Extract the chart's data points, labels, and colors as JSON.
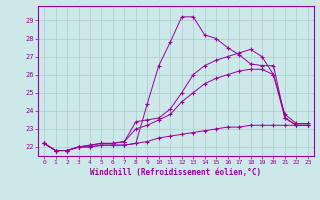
{
  "background_color": "#cce8e8",
  "grid_color": "#aacccc",
  "line_color": "#990099",
  "xlabel": "Windchill (Refroidissement éolien,°C)",
  "xlim": [
    -0.5,
    23.5
  ],
  "ylim": [
    21.5,
    29.8
  ],
  "yticks": [
    22,
    23,
    24,
    25,
    26,
    27,
    28,
    29
  ],
  "xticks": [
    0,
    1,
    2,
    3,
    4,
    5,
    6,
    7,
    8,
    9,
    10,
    11,
    12,
    13,
    14,
    15,
    16,
    17,
    18,
    19,
    20,
    21,
    22,
    23
  ],
  "series": [
    [
      22.2,
      21.8,
      21.8,
      22.0,
      22.0,
      22.1,
      22.1,
      22.1,
      22.2,
      24.4,
      26.5,
      27.8,
      29.2,
      29.2,
      28.2,
      28.0,
      27.5,
      27.1,
      26.6,
      26.5,
      26.5,
      23.6,
      23.2,
      23.2
    ],
    [
      22.2,
      21.8,
      21.8,
      22.0,
      22.1,
      22.2,
      22.2,
      22.3,
      23.4,
      23.5,
      23.6,
      24.1,
      25.0,
      26.0,
      26.5,
      26.8,
      27.0,
      27.2,
      27.4,
      27.0,
      26.0,
      23.8,
      23.3,
      23.3
    ],
    [
      22.2,
      21.8,
      21.8,
      22.0,
      22.1,
      22.2,
      22.2,
      22.3,
      23.0,
      23.2,
      23.5,
      23.8,
      24.5,
      25.0,
      25.5,
      25.8,
      26.0,
      26.2,
      26.3,
      26.3,
      26.0,
      23.6,
      23.2,
      23.2
    ],
    [
      22.2,
      21.8,
      21.8,
      22.0,
      22.0,
      22.1,
      22.1,
      22.1,
      22.2,
      22.3,
      22.5,
      22.6,
      22.7,
      22.8,
      22.9,
      23.0,
      23.1,
      23.1,
      23.2,
      23.2,
      23.2,
      23.2,
      23.2,
      23.2
    ]
  ]
}
